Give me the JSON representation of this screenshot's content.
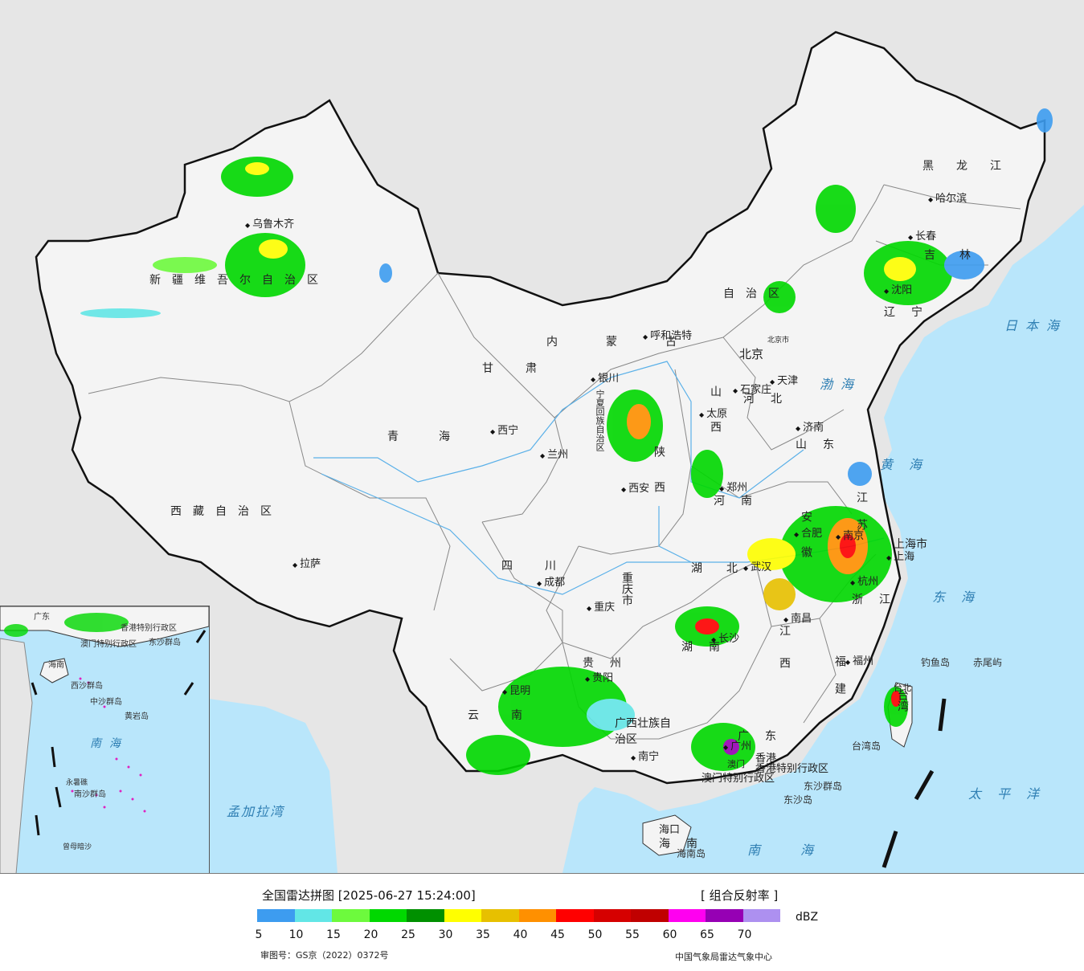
{
  "map": {
    "provinces": [
      {
        "id": "xinjiang",
        "label": "新疆维吾尔自治区"
      },
      {
        "id": "xizang",
        "label": "西藏自治区"
      },
      {
        "id": "qinghai",
        "label": "青海"
      },
      {
        "id": "gansu",
        "label": "甘肃"
      },
      {
        "id": "neimenggu",
        "label": "内蒙古"
      },
      {
        "id": "neimenggu-2",
        "label": "自治区"
      },
      {
        "id": "heilongjiang",
        "label": "黑龙江"
      },
      {
        "id": "jilin",
        "label": "吉林"
      },
      {
        "id": "liaoning",
        "label": "辽宁"
      },
      {
        "id": "hebei",
        "label": "河北"
      },
      {
        "id": "shanxi",
        "label": "山西"
      },
      {
        "id": "shaanxi",
        "label": "陕西"
      },
      {
        "id": "shandong",
        "label": "山东"
      },
      {
        "id": "henan",
        "label": "河南"
      },
      {
        "id": "jiangsu",
        "label": "江苏"
      },
      {
        "id": "anhui",
        "label": "安徽"
      },
      {
        "id": "hubei",
        "label": "湖北"
      },
      {
        "id": "sichuan",
        "label": "四川"
      },
      {
        "id": "chongqing",
        "label": "重庆市"
      },
      {
        "id": "guizhou",
        "label": "贵州"
      },
      {
        "id": "yunnan",
        "label": "云南"
      },
      {
        "id": "hunan",
        "label": "湖南"
      },
      {
        "id": "jiangxi",
        "label": "江西"
      },
      {
        "id": "zhejiang",
        "label": "浙江"
      },
      {
        "id": "fujian",
        "label": "福建"
      },
      {
        "id": "guangdong",
        "label": "广东"
      },
      {
        "id": "guangxi",
        "label": "广西壮族自治区"
      },
      {
        "id": "hainan",
        "label": "海南"
      },
      {
        "id": "taiwan",
        "label": "台湾"
      },
      {
        "id": "shanghai",
        "label": "上海市"
      },
      {
        "id": "ningxia",
        "label": "宁夏回族自治区"
      },
      {
        "id": "hk",
        "label": "香港特别行政区"
      },
      {
        "id": "macau",
        "label": "澳门特别行政区"
      }
    ],
    "cities": [
      {
        "id": "urumqi",
        "label": "乌鲁木齐"
      },
      {
        "id": "lhasa",
        "label": "拉萨"
      },
      {
        "id": "xining",
        "label": "西宁"
      },
      {
        "id": "lanzhou",
        "label": "兰州"
      },
      {
        "id": "yinchuan",
        "label": "银川"
      },
      {
        "id": "hohhot",
        "label": "呼和浩特"
      },
      {
        "id": "harbin",
        "label": "哈尔滨"
      },
      {
        "id": "changchun",
        "label": "长春"
      },
      {
        "id": "shenyang",
        "label": "沈阳"
      },
      {
        "id": "beijing",
        "label": "北京"
      },
      {
        "id": "beijing-shi",
        "label": "北京市"
      },
      {
        "id": "tianjin",
        "label": "天津"
      },
      {
        "id": "shijiazhuang",
        "label": "石家庄"
      },
      {
        "id": "taiyuan",
        "label": "太原"
      },
      {
        "id": "jinan",
        "label": "济南"
      },
      {
        "id": "xian",
        "label": "西安"
      },
      {
        "id": "zhengzhou",
        "label": "郑州"
      },
      {
        "id": "hefei",
        "label": "合肥"
      },
      {
        "id": "nanjing",
        "label": "南京"
      },
      {
        "id": "shanghai-city",
        "label": "上海"
      },
      {
        "id": "hangzhou",
        "label": "杭州"
      },
      {
        "id": "wuhan",
        "label": "武汉"
      },
      {
        "id": "chengdu",
        "label": "成都"
      },
      {
        "id": "chongqing-city",
        "label": "重庆"
      },
      {
        "id": "guiyang",
        "label": "贵阳"
      },
      {
        "id": "kunming",
        "label": "昆明"
      },
      {
        "id": "changsha",
        "label": "长沙"
      },
      {
        "id": "nanchang",
        "label": "南昌"
      },
      {
        "id": "fuzhou",
        "label": "福州"
      },
      {
        "id": "guangzhou",
        "label": "广州"
      },
      {
        "id": "nanning",
        "label": "南宁"
      },
      {
        "id": "haikou",
        "label": "海口"
      },
      {
        "id": "taipei",
        "label": "台北"
      },
      {
        "id": "hk-city",
        "label": "香港"
      },
      {
        "id": "macau-city",
        "label": "澳门"
      }
    ],
    "seas": [
      {
        "id": "japan-sea",
        "label": "日本海"
      },
      {
        "id": "bohai",
        "label": "渤海"
      },
      {
        "id": "yellow-sea",
        "label": "黄海"
      },
      {
        "id": "east-sea",
        "label": "东海"
      },
      {
        "id": "pacific",
        "label": "太平洋"
      },
      {
        "id": "south-sea",
        "label": "南海"
      },
      {
        "id": "bengal",
        "label": "孟加拉湾"
      }
    ],
    "islands": [
      {
        "id": "diaoyu",
        "label": "钓鱼岛"
      },
      {
        "id": "chiwei",
        "label": "赤尾屿"
      },
      {
        "id": "taiwan-island",
        "label": "台湾岛"
      },
      {
        "id": "dongsha-islands",
        "label": "东沙群岛"
      },
      {
        "id": "dongsha",
        "label": "东沙岛"
      },
      {
        "id": "hainan-island",
        "label": "海南岛"
      }
    ]
  },
  "inset": {
    "labels": [
      {
        "id": "inset-gd",
        "label": "广东"
      },
      {
        "id": "inset-hk",
        "label": "香港特别行政区"
      },
      {
        "id": "inset-macau",
        "label": "澳门特别行政区"
      },
      {
        "id": "inset-dongsha",
        "label": "东沙群岛"
      },
      {
        "id": "inset-hainan",
        "label": "海南"
      },
      {
        "id": "inset-xisha",
        "label": "西沙群岛"
      },
      {
        "id": "inset-zhongsha",
        "label": "中沙群岛"
      },
      {
        "id": "inset-huangyan",
        "label": "黄岩岛"
      },
      {
        "id": "inset-nansha",
        "label": "南沙群岛"
      },
      {
        "id": "inset-yongshu",
        "label": "永暑礁"
      },
      {
        "id": "inset-zengmu",
        "label": "曾母暗沙"
      }
    ],
    "sea": "南海"
  },
  "legend": {
    "title": "全国雷达拼图 [2025-06-27 15:24:00]",
    "product": "[ 组合反射率 ]",
    "unit": "dBZ",
    "colors": [
      "#3d9cf0",
      "#62e6e6",
      "#6dfa3d",
      "#00d800",
      "#009000",
      "#ffff00",
      "#e7c000",
      "#ff9000",
      "#ff0000",
      "#d60000",
      "#c00000",
      "#ff00f0",
      "#9600b4",
      "#ad90f0"
    ],
    "ticks": [
      "5",
      "10",
      "15",
      "20",
      "25",
      "30",
      "35",
      "40",
      "45",
      "50",
      "55",
      "60",
      "65",
      "70"
    ],
    "approval": "审图号：GS京（2022）0372号",
    "agency": "中国气象局雷达气象中心"
  }
}
